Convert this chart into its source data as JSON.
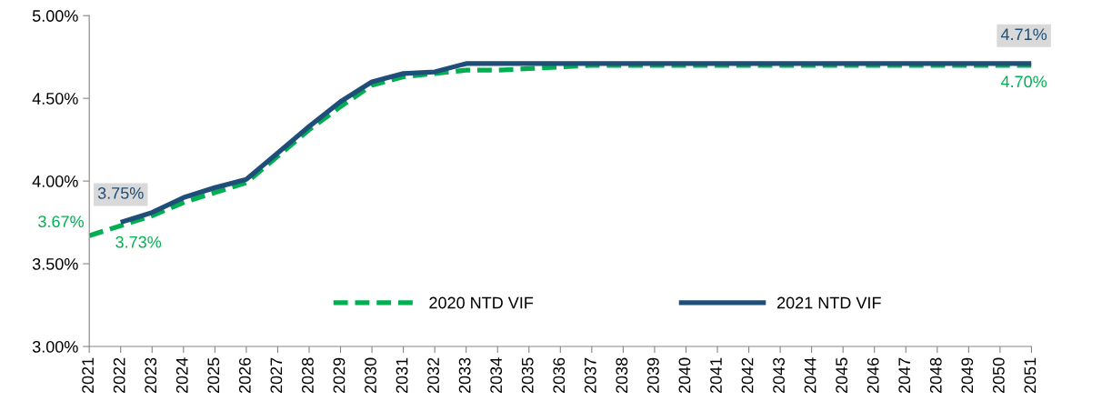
{
  "chart_data": {
    "type": "line",
    "categories": [
      "2021",
      "2022",
      "2023",
      "2024",
      "2025",
      "2026",
      "2027",
      "2028",
      "2029",
      "2030",
      "2031",
      "2032",
      "2033",
      "2034",
      "2035",
      "2036",
      "2037",
      "2038",
      "2039",
      "2040",
      "2041",
      "2042",
      "2043",
      "2044",
      "2045",
      "2046",
      "2047",
      "2048",
      "2049",
      "2050",
      "2051"
    ],
    "series": [
      {
        "name": "2020 NTD VIF",
        "color": "#00b050",
        "line_style": "dashed",
        "values": [
          3.67,
          3.73,
          3.79,
          3.87,
          3.93,
          3.99,
          4.15,
          4.31,
          4.45,
          4.58,
          4.63,
          4.65,
          4.67,
          4.67,
          4.68,
          4.69,
          4.7,
          4.7,
          4.7,
          4.7,
          4.7,
          4.7,
          4.7,
          4.7,
          4.7,
          4.7,
          4.7,
          4.7,
          4.7,
          4.7,
          4.7
        ]
      },
      {
        "name": "2021 NTD VIF",
        "color": "#1f4e79",
        "line_style": "solid",
        "values": [
          null,
          3.75,
          3.81,
          3.9,
          3.96,
          4.01,
          4.17,
          4.33,
          4.48,
          4.6,
          4.65,
          4.66,
          4.71,
          4.71,
          4.71,
          4.71,
          4.71,
          4.71,
          4.71,
          4.71,
          4.71,
          4.71,
          4.71,
          4.71,
          4.71,
          4.71,
          4.71,
          4.71,
          4.71,
          4.71,
          4.71
        ]
      }
    ],
    "ylim": [
      3.0,
      5.0
    ],
    "yticks": [
      {
        "value": 3.0,
        "label": "3.00%"
      },
      {
        "value": 3.5,
        "label": "3.50%"
      },
      {
        "value": 4.0,
        "label": "4.00%"
      },
      {
        "value": 4.5,
        "label": "4.50%"
      },
      {
        "value": 5.0,
        "label": "5.00%"
      }
    ],
    "annotations": [
      {
        "text": "3.67%",
        "x": "2021",
        "y": 3.67
      },
      {
        "text": "3.73%",
        "x": "2022",
        "y": 3.73
      },
      {
        "text": "3.75%",
        "x": "2022",
        "y": 3.75
      },
      {
        "text": "4.71%",
        "x": "2051",
        "y": 4.71
      },
      {
        "text": "4.70%",
        "x": "2051",
        "y": 4.7
      }
    ],
    "grid": false,
    "legend": "bottom",
    "marker": "none"
  }
}
